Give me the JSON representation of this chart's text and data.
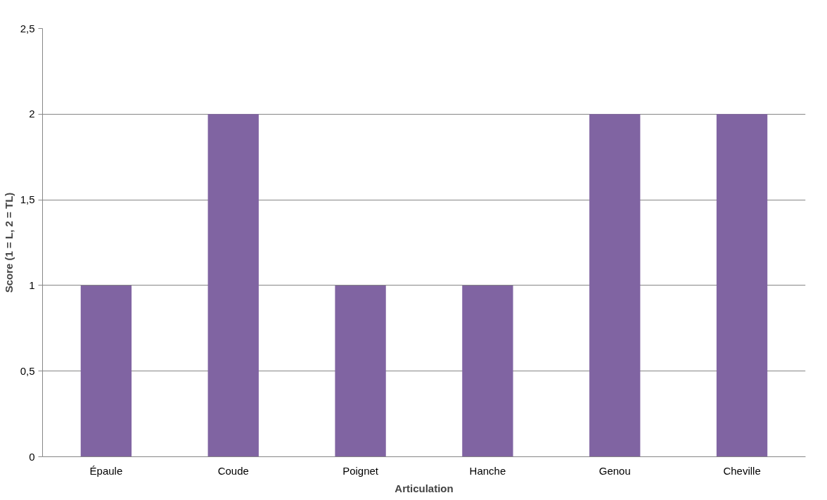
{
  "chart_data": {
    "type": "bar",
    "xlabel": "Articulation",
    "ylabel": "Score (1 = L, 2 = TL)",
    "categories": [
      "Épaule",
      "Coude",
      "Poignet",
      "Hanche",
      "Genou",
      "Cheville"
    ],
    "values": [
      1,
      2,
      1,
      1,
      2,
      2
    ],
    "color": "#8064a2",
    "ylim": [
      0,
      2.5
    ],
    "yticks": [
      0,
      {
        "value": 0.5,
        "label": "0,5"
      },
      1,
      {
        "value": 1.5,
        "label": "1,5"
      },
      2,
      {
        "value": 2.5,
        "label": "2,5"
      }
    ],
    "grid": "y"
  }
}
